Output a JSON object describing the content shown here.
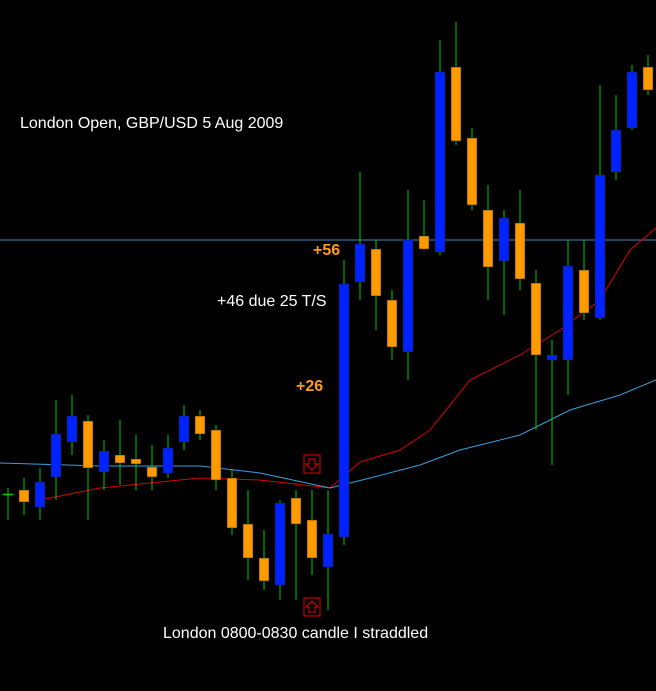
{
  "chart_data": {
    "type": "candlestick",
    "title": "London Open, GBP/USD 5 Aug 2009",
    "annotations": [
      "+56",
      "+46 due 25 T/S",
      "+26",
      "London 0800-0830 candle I straddled"
    ],
    "x": [
      0,
      1,
      2,
      3,
      4,
      5,
      6,
      7,
      8,
      9,
      10,
      11,
      12,
      13,
      14,
      15,
      16,
      17,
      18,
      19,
      20,
      21,
      22,
      23,
      24,
      25,
      26,
      27,
      28,
      29,
      30,
      31,
      32,
      33,
      34,
      35,
      36,
      37,
      38,
      39,
      40
    ],
    "open": [
      197,
      201,
      184,
      214,
      249,
      270,
      219,
      236,
      232,
      224,
      218,
      249,
      275,
      261,
      213,
      167,
      133,
      106,
      193,
      171,
      124,
      154,
      409,
      442,
      391,
      339,
      455,
      439,
      624,
      553,
      481,
      430,
      468,
      408,
      331,
      331,
      421,
      373,
      519,
      563,
      624
    ],
    "high": [
      203,
      213,
      223,
      291,
      296,
      276,
      251,
      271,
      256,
      246,
      256,
      286,
      281,
      266,
      221,
      201,
      161,
      191,
      201,
      201,
      201,
      431,
      519,
      451,
      401,
      501,
      491,
      651,
      669,
      563,
      506,
      481,
      501,
      421,
      351,
      451,
      451,
      606,
      596,
      626,
      636
    ],
    "low": [
      171,
      176,
      171,
      191,
      236,
      171,
      201,
      206,
      201,
      201,
      213,
      241,
      251,
      201,
      156,
      111,
      101,
      91,
      91,
      116,
      81,
      146,
      391,
      361,
      331,
      311,
      441,
      436,
      546,
      481,
      391,
      376,
      401,
      261,
      226,
      296,
      371,
      371,
      511,
      561,
      596
    ],
    "close": [
      197,
      189,
      209,
      257,
      275,
      223,
      240,
      228,
      227,
      214,
      243,
      275,
      257,
      211,
      163,
      133,
      110,
      188,
      167,
      133,
      157,
      407,
      447,
      395,
      344,
      451,
      442,
      619,
      550,
      486,
      424,
      473,
      412,
      336,
      336,
      425,
      378,
      516,
      561,
      619,
      601
    ],
    "up_color": "#0022ff",
    "down_color": "#ff9900",
    "doji_color": "#00cc00",
    "wick_color": "#00cc00",
    "lines": [
      {
        "color": "#dd0000",
        "x": [
          2,
          5.75,
          12,
          15.75,
          20.125,
          22,
          24.5,
          26.375,
          28.875,
          32,
          34.5,
          37,
          38.875,
          40.5
        ],
        "values": [
          191,
          203,
          213,
          211,
          203,
          229,
          241,
          261,
          311,
          336,
          361,
          391,
          441,
          463
        ]
      },
      {
        "color": "#3aa0e0",
        "x": [
          -0.5,
          5.75,
          12,
          15.75,
          20.125,
          22.625,
          25.75,
          28.25,
          32,
          35.125,
          38.25,
          40.5
        ],
        "values": [
          228,
          225,
          225,
          218,
          203,
          213,
          226,
          241,
          256,
          281,
          296,
          311
        ]
      }
    ],
    "hline": {
      "value": 451,
      "color": "#4a8ab8"
    },
    "xlim": [
      -0.5,
      40.5
    ],
    "ylim": [
      0,
      691
    ]
  }
}
